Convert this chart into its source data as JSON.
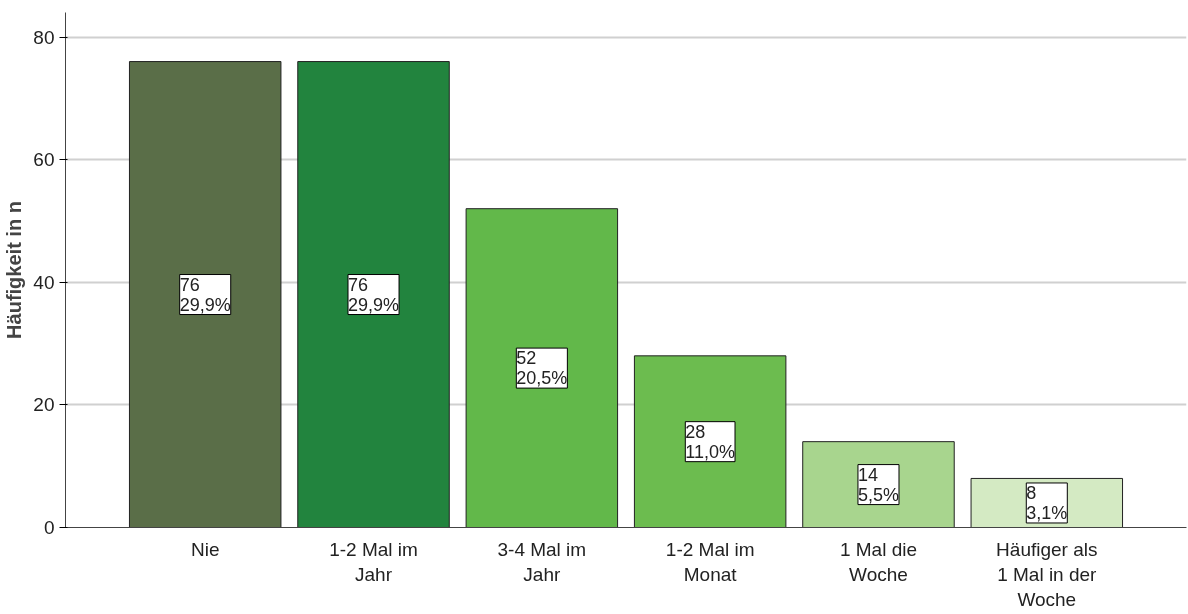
{
  "chart_data": {
    "type": "bar",
    "ylabel": "Häufigkeit in n",
    "categories": [
      "Nie",
      "1-2 Mal im Jahr",
      "3-4 Mal im Jahr",
      "1-2 Mal im Monat",
      "1 Mal die Woche",
      "Häufiger als 1 Mal in der Woche"
    ],
    "values": [
      76,
      76,
      52,
      28,
      14,
      8
    ],
    "colors": [
      "#5a6e48",
      "#22843e",
      "#62b84a",
      "#6cbc4f",
      "#a8d58e",
      "#d4eac3"
    ],
    "value_labels": [
      "76\n29,9%",
      "76\n29,9%",
      "52\n20,5%",
      "28\n11,0%",
      "14\n5,5%",
      "8\n3,1%"
    ],
    "ylim": [
      0,
      84
    ],
    "yticks": [
      0,
      20,
      40,
      60,
      80
    ],
    "grid": "y"
  }
}
